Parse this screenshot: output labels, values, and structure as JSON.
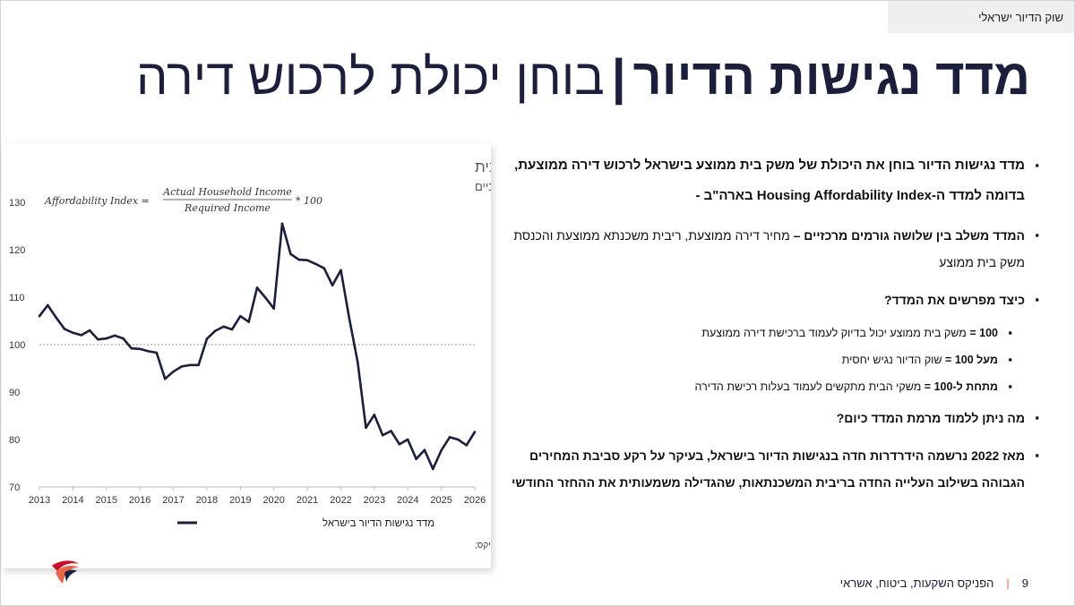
{
  "top_tag": "שוק הדיור ישראלי",
  "title": {
    "bold_part": "מדד נגישות הדיור",
    "separator": "|",
    "regular_part": "בוחן יכולת לרכוש דירה"
  },
  "bullets": {
    "b1": "מדד נגישות הדיור בוחן את היכולת של משק בית ממוצע בישראל לרכוש דירה ממוצעת, בדומה למדד ה-Housing Affordability Index בארה\"ב -",
    "b2_bold": "המדד משלב בין שלושה גורמים מרכזיים –",
    "b2_rest": "מחיר דירה ממוצעת, ריבית משכנתא ממוצעת והכנסת משק בית ממוצע",
    "b3": "כיצד מפרשים את המדד?",
    "s1_bold": "100 =",
    "s1_rest": "משק בית ממוצע יכול בדיוק לעמוד ברכישת דירה ממוצעת",
    "s2_bold": "מעל 100 =",
    "s2_rest": "שוק הדיור נגיש יחסית",
    "s3_bold": "מתחת ל-100 =",
    "s3_rest": "משקי הבית מתקשים לעמוד בעלות רכישת הדירה",
    "b4": "מה ניתן ללמוד מרמת המדד כיום?",
    "b5": "מאז 2022 נרשמה הידרדרות חדה בנגישות הדיור בישראל, בעיקר על רקע סביבת המחירים הגבוהה בשילוב העלייה החדה בריבית המשכנתאות, שהגדילה משמעותית את ההחזר החודשי"
  },
  "footer": {
    "page_number": "9",
    "company": "הפניקס השקעות, ביטוח, אשראי"
  },
  "colors": {
    "navy": "#1b1f3b",
    "accent_orange": "#e5674a",
    "accent_red": "#c8102e"
  },
  "chart_data": {
    "type": "line",
    "title": "נגישות הדיור בישראל ונטל ההחזר של משקי הבית",
    "subtitle": "נתונים רבעוניים",
    "formula": {
      "prefix": "Affordability Index =",
      "numerator": "Actual Household Income",
      "denominator": "Required Income",
      "suffix": "* 100"
    },
    "x_ticks": [
      "2013",
      "2014",
      "2015",
      "2016",
      "2017",
      "2018",
      "2019",
      "2020",
      "2021",
      "2022",
      "2023",
      "2024",
      "2025",
      "2026"
    ],
    "y_ticks": [
      "70",
      "80",
      "90",
      "100",
      "110",
      "120",
      "130"
    ],
    "ylim": [
      70,
      130
    ],
    "xlim": [
      2013,
      2026
    ],
    "reference_line": 100,
    "legend": "מדד נגישות הדיור בישראל",
    "source": "מקור: הלמ\"ס, בנק ישראל, הלמ\"ס; ניתוח ועיבוד נתונים: הפניקס;",
    "series": [
      {
        "name": "מדד נגישות הדיור בישראל",
        "color": "#1b1f3b",
        "x": [
          2013.0,
          2013.25,
          2013.5,
          2013.75,
          2014.0,
          2014.25,
          2014.5,
          2014.75,
          2015.0,
          2015.25,
          2015.5,
          2015.75,
          2016.0,
          2016.25,
          2016.5,
          2016.75,
          2017.0,
          2017.25,
          2017.5,
          2017.75,
          2018.0,
          2018.25,
          2018.5,
          2018.75,
          2019.0,
          2019.25,
          2019.5,
          2019.75,
          2020.0,
          2020.25,
          2020.5,
          2020.75,
          2021.0,
          2021.25,
          2021.5,
          2021.75,
          2022.0,
          2022.25,
          2022.5,
          2022.75,
          2023.0,
          2023.25,
          2023.5,
          2023.75,
          2024.0,
          2024.25,
          2024.5,
          2024.75,
          2025.0,
          2025.25,
          2025.5,
          2025.75,
          2026.0
        ],
        "values": [
          106,
          108.3,
          105.7,
          103.3,
          102.5,
          102,
          103,
          101.1,
          101.3,
          101.9,
          101.3,
          99.2,
          99.1,
          98.6,
          98.3,
          92.8,
          94.3,
          95.4,
          95.7,
          95.7,
          101.2,
          102.9,
          103.8,
          103.2,
          106,
          104.8,
          112,
          109.9,
          107.6,
          125.5,
          119.1,
          117.9,
          117.8,
          117,
          116.1,
          112.5,
          115.7,
          105.6,
          96.4,
          82.5,
          85.2,
          80.9,
          81.8,
          79,
          80,
          75.9,
          77.8,
          73.8,
          77.7,
          80.5,
          80,
          78.8,
          81.6
        ]
      }
    ]
  }
}
